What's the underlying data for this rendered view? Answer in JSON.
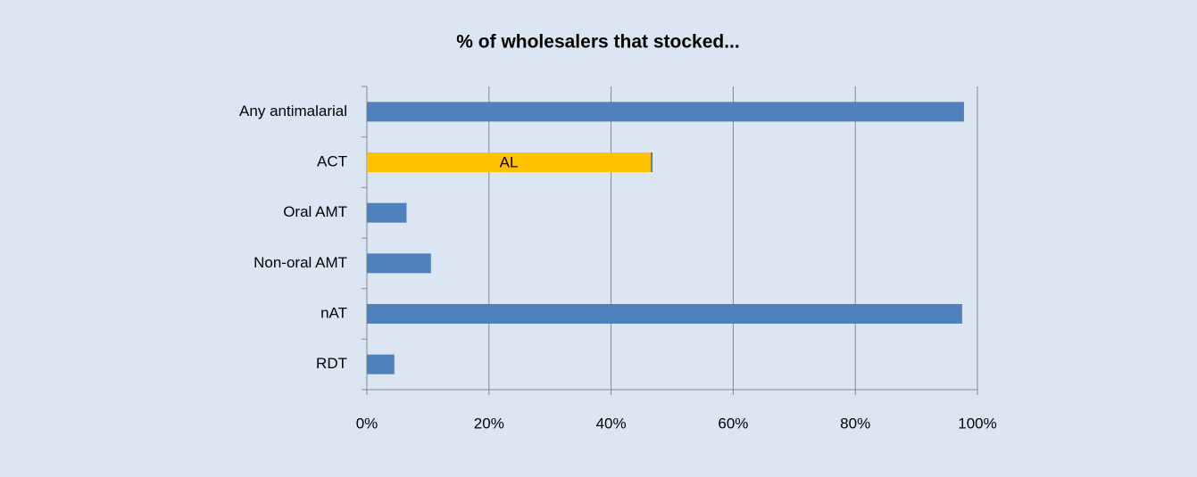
{
  "chart_data": {
    "type": "bar",
    "orientation": "horizontal",
    "stacked": true,
    "title": "% of wholesalers that stocked...",
    "categories": [
      "Any antimalarial",
      "ACT",
      "Oral AMT",
      "Non-oral AMT",
      "nAT",
      "RDT"
    ],
    "series": [
      {
        "name": "AL",
        "color": "#ffc000",
        "values": [
          null,
          46.5,
          null,
          null,
          null,
          null
        ]
      },
      {
        "color": "#4f81bd",
        "values": [
          97.8,
          0.3,
          6.5,
          10.5,
          97.5,
          4.5
        ]
      }
    ],
    "xlim": [
      0,
      100
    ],
    "xticks": [
      {
        "value": 0,
        "label": "0%"
      },
      {
        "value": 20,
        "label": "20%"
      },
      {
        "value": 40,
        "label": "40%"
      },
      {
        "value": 60,
        "label": "60%"
      },
      {
        "value": 80,
        "label": "80%"
      },
      {
        "value": 100,
        "label": "100%"
      }
    ],
    "grid": true
  }
}
